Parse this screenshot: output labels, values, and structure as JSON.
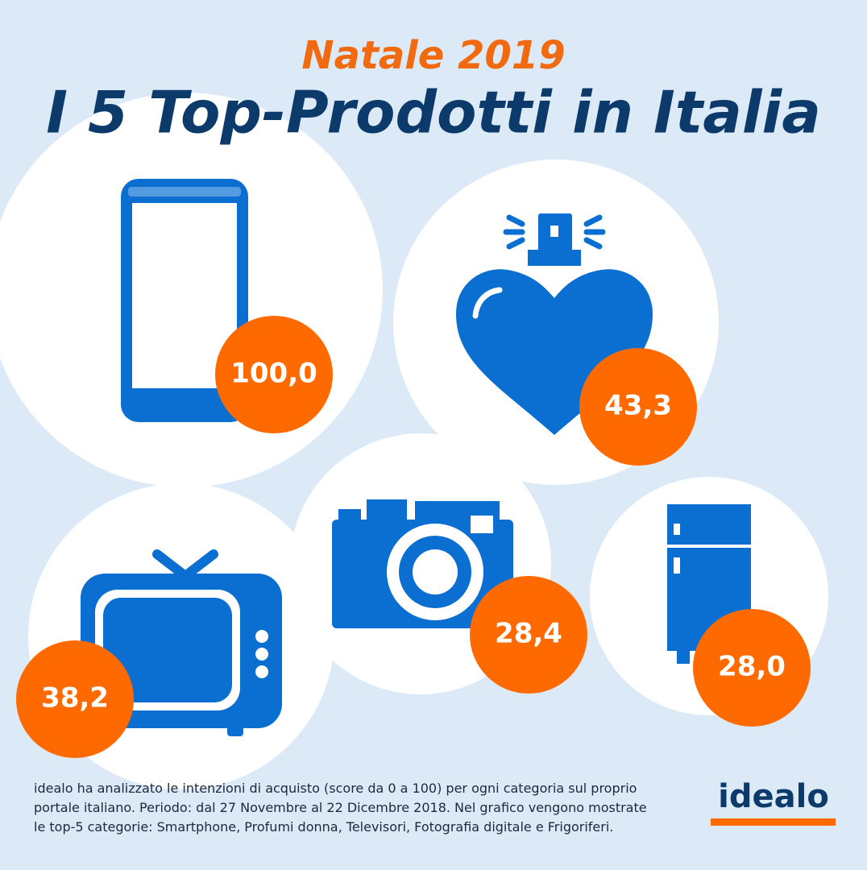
{
  "header": {
    "subtitle": "Natale 2019",
    "title": "I 5 Top-Prodotti in Italia"
  },
  "items": [
    {
      "score": "100,0"
    },
    {
      "score": "43,3"
    },
    {
      "score": "38,2"
    },
    {
      "score": "28,4"
    },
    {
      "score": "28,0"
    }
  ],
  "footnote": [
    "idealo ha analizzato le intenzioni di acquisto (score da 0 a 100) per ogni categoria sul proprio",
    "portale italiano. Periodo: dal 27 Novembre al 22 Dicembre 2018. Nel grafico vengono mostrate",
    "le top-5 categorie: Smartphone, Profumi donna, Televisori, Fotografia digitale e Frigoriferi."
  ],
  "logo": "idealo"
}
